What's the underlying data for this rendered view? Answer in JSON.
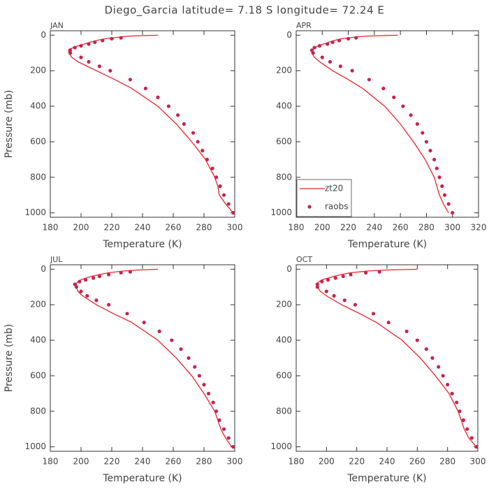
{
  "title": "Diego_Garcia  latitude= 7.18 S longitude= 72.24 E",
  "chart_data": [
    {
      "type": "line",
      "panel": "JAN",
      "xlabel": "Temperature (K)",
      "ylabel": "Pressure (mb)",
      "xlim": [
        180,
        300
      ],
      "xticks": [
        180,
        200,
        220,
        240,
        260,
        280,
        300
      ],
      "ylim": [
        1025,
        -25
      ],
      "yticks": [
        0,
        200,
        400,
        600,
        800,
        1000
      ],
      "series": [
        {
          "name": "zt20",
          "style": "line",
          "color": "#e8242c",
          "x": [
            250,
            232,
            226,
            216,
            210,
            206,
            202,
            198,
            195,
            192,
            192,
            194,
            198,
            210,
            222,
            233,
            250,
            262,
            272,
            281,
            287,
            289,
            290,
            294,
            299
          ],
          "values": [
            0,
            5,
            10,
            20,
            30,
            40,
            50,
            60,
            70,
            80,
            100,
            125,
            150,
            200,
            250,
            300,
            400,
            500,
            600,
            700,
            800,
            850,
            900,
            950,
            1000
          ]
        },
        {
          "name": "raobs",
          "style": "points",
          "color": "#c2264e",
          "x": [
            299,
            296,
            293,
            290.5,
            288,
            285.5,
            282,
            279,
            276,
            273,
            267,
            263,
            257,
            250,
            242,
            232,
            219,
            212,
            205,
            200,
            193,
            193,
            196,
            200,
            205,
            209,
            214,
            220,
            226
          ],
          "values": [
            1000,
            950,
            900,
            850,
            800,
            750,
            700,
            650,
            600,
            550,
            500,
            450,
            400,
            350,
            300,
            250,
            200,
            175,
            150,
            125,
            100,
            85,
            70,
            60,
            50,
            40,
            30,
            20,
            15
          ]
        }
      ]
    },
    {
      "type": "line",
      "panel": "APR",
      "xlabel": "Temperature (K)",
      "legend": "lower-left",
      "xlim": [
        180,
        320
      ],
      "xticks": [
        180,
        200,
        220,
        240,
        260,
        280,
        300,
        320
      ],
      "ylim": [
        1025,
        -25
      ],
      "yticks": [
        0,
        200,
        400,
        600,
        800,
        1000
      ],
      "series": [
        {
          "name": "zt20",
          "style": "line",
          "color": "#e8242c",
          "x": [
            258,
            235,
            226,
            215,
            209,
            205,
            201,
            197,
            194,
            193,
            192,
            194,
            198,
            208,
            220,
            231,
            248,
            260,
            270,
            279,
            286,
            288,
            290,
            293,
            297
          ],
          "values": [
            0,
            5,
            10,
            20,
            30,
            40,
            50,
            60,
            70,
            80,
            100,
            125,
            150,
            200,
            250,
            300,
            400,
            500,
            600,
            700,
            800,
            850,
            900,
            950,
            1000
          ]
        },
        {
          "name": "raobs",
          "style": "points",
          "color": "#c2264e",
          "x": [
            300,
            297,
            294,
            292,
            290,
            288,
            286,
            283,
            280,
            277,
            273,
            268,
            262,
            255,
            247,
            236,
            223,
            214,
            206,
            200,
            193,
            192,
            194,
            198,
            204,
            208,
            213,
            220,
            226
          ],
          "values": [
            1000,
            950,
            900,
            850,
            800,
            750,
            700,
            650,
            600,
            550,
            500,
            450,
            400,
            350,
            300,
            250,
            200,
            175,
            150,
            125,
            100,
            85,
            70,
            60,
            50,
            40,
            30,
            20,
            15
          ]
        }
      ]
    },
    {
      "type": "line",
      "panel": "JUL",
      "xlabel": "Temperature (K)",
      "ylabel": "Pressure (mb)",
      "xlim": [
        180,
        300
      ],
      "xticks": [
        180,
        200,
        220,
        240,
        260,
        280,
        300
      ],
      "ylim": [
        1025,
        -25
      ],
      "yticks": [
        0,
        200,
        400,
        600,
        800,
        1000
      ],
      "series": [
        {
          "name": "zt20",
          "style": "line",
          "color": "#e8242c",
          "x": [
            250,
            236,
            228,
            218,
            212,
            207,
            203,
            200,
            198,
            197,
            197,
            198,
            201,
            210,
            221,
            233,
            250,
            262,
            272,
            280,
            287,
            289,
            291,
            294,
            298
          ],
          "values": [
            0,
            5,
            10,
            20,
            30,
            40,
            50,
            60,
            70,
            80,
            100,
            125,
            150,
            200,
            250,
            300,
            400,
            500,
            600,
            700,
            800,
            850,
            900,
            950,
            1000
          ]
        },
        {
          "name": "raobs",
          "style": "points",
          "color": "#c2264e",
          "x": [
            299,
            296,
            293,
            290,
            288,
            286,
            283,
            280,
            277,
            274,
            270,
            265,
            259,
            251,
            241,
            230,
            218,
            210,
            204,
            200,
            197,
            196,
            199,
            203,
            208,
            212,
            218,
            226,
            232
          ],
          "values": [
            1000,
            950,
            900,
            850,
            800,
            750,
            700,
            650,
            600,
            550,
            500,
            450,
            400,
            350,
            300,
            250,
            200,
            175,
            150,
            125,
            100,
            85,
            70,
            60,
            50,
            40,
            30,
            20,
            15
          ]
        }
      ]
    },
    {
      "type": "line",
      "panel": "OCT",
      "xlabel": "Temperature (K)",
      "xlim": [
        180,
        300
      ],
      "xticks": [
        180,
        200,
        220,
        240,
        260,
        280,
        300
      ],
      "ylim": [
        1025,
        -25
      ],
      "yticks": [
        0,
        200,
        400,
        600,
        800,
        1000
      ],
      "series": [
        {
          "name": "zt20",
          "style": "line",
          "color": "#e8242c",
          "x": [
            260,
            238,
            228,
            216,
            210,
            205,
            201,
            197,
            195,
            194,
            194,
            196,
            200,
            210,
            222,
            233,
            250,
            262,
            272,
            281,
            287,
            289,
            291,
            294,
            299
          ],
          "values": [
            0,
            5,
            10,
            20,
            30,
            40,
            50,
            60,
            70,
            80,
            100,
            125,
            150,
            200,
            250,
            300,
            400,
            500,
            600,
            700,
            800,
            850,
            900,
            950,
            1000
          ]
        },
        {
          "name": "raobs",
          "style": "points",
          "color": "#c2264e",
          "x": [
            299,
            296,
            293,
            290.5,
            288,
            286,
            283,
            280,
            277,
            274,
            270,
            266,
            260,
            253,
            241,
            231,
            219,
            212,
            205,
            200,
            194,
            194,
            197,
            201,
            206,
            211,
            216,
            226,
            235
          ],
          "values": [
            1000,
            950,
            900,
            850,
            800,
            750,
            700,
            650,
            600,
            550,
            500,
            450,
            400,
            350,
            300,
            250,
            200,
            175,
            150,
            125,
            100,
            85,
            70,
            60,
            50,
            40,
            30,
            20,
            15
          ]
        }
      ]
    }
  ]
}
